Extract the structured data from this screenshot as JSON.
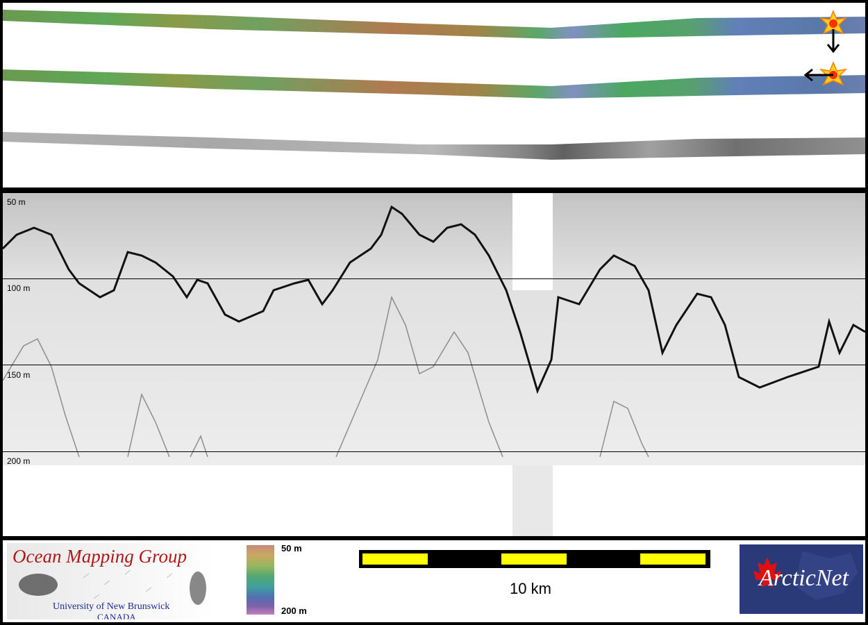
{
  "profile": {
    "depth_labels": [
      "50 m",
      "100 m",
      "150 m",
      "200 m"
    ]
  },
  "legend": {
    "org_name": "Ocean Mapping Group",
    "university": "University of New Brunswick",
    "country": "CANADA",
    "colorbar_top_label": "50 m",
    "colorbar_bottom_label": "200 m",
    "scale_label": "10 km",
    "partner_logo_text": "ArcticNet"
  },
  "colors": {
    "scale_bar_fill": "#ffff00",
    "org_title": "#b01818",
    "org_text": "#1a2a8a",
    "partner_bg": "#2a3a78"
  },
  "icons": [
    "sun-marker-icon",
    "arrow-down-icon",
    "arrow-left-icon",
    "maple-leaf-icon",
    "seafloor-render-icon"
  ]
}
